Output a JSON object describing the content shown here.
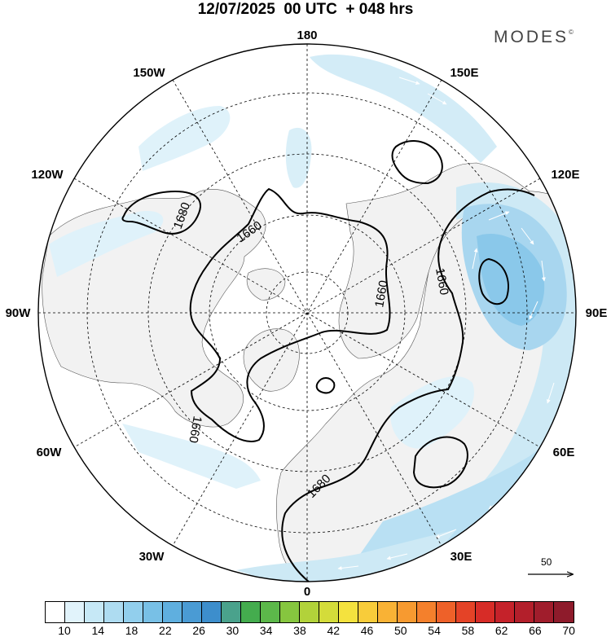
{
  "header": {
    "title": "12/07/2025  00 UTC  + 048 hrs",
    "brand": "MODES",
    "brand_mark": "©"
  },
  "map": {
    "projection": "north-polar-stereographic",
    "longitude_labels": {
      "top": "180",
      "upper_left": "150W",
      "upper_right": "150E",
      "left_upper": "120W",
      "right_upper": "120E",
      "left": "90W",
      "right": "90E",
      "left_lower": "60W",
      "right_lower": "60E",
      "lower_left": "30W",
      "lower_right": "30E",
      "bottom": "0"
    },
    "contour_labels": [
      "1680",
      "1660",
      "1660",
      "1660",
      "1660",
      "1680"
    ],
    "land_color": "#f2f2f2",
    "ocean_color": "#ffffff",
    "grid_style": "dashed"
  },
  "reference_vector": {
    "label": "50"
  },
  "colorbar": {
    "ticks": [
      "10",
      "14",
      "18",
      "22",
      "26",
      "30",
      "34",
      "38",
      "42",
      "46",
      "50",
      "54",
      "58",
      "62",
      "66",
      "70"
    ],
    "colors": [
      "#ffffff",
      "#e1f3fb",
      "#c6e8f6",
      "#aedcf1",
      "#92cfed",
      "#78c0e6",
      "#5fafdf",
      "#4a9bd4",
      "#3d8ecc",
      "#4aa28c",
      "#44ac4e",
      "#5cb84a",
      "#86c63f",
      "#b2d23a",
      "#d4dc3a",
      "#f4e23e",
      "#f8cc3a",
      "#f9b235",
      "#f79a30",
      "#f4802c",
      "#ee6129",
      "#e44327",
      "#d72c27",
      "#c5222a",
      "#b31f2b",
      "#a01d2c",
      "#8e1b2b"
    ]
  }
}
